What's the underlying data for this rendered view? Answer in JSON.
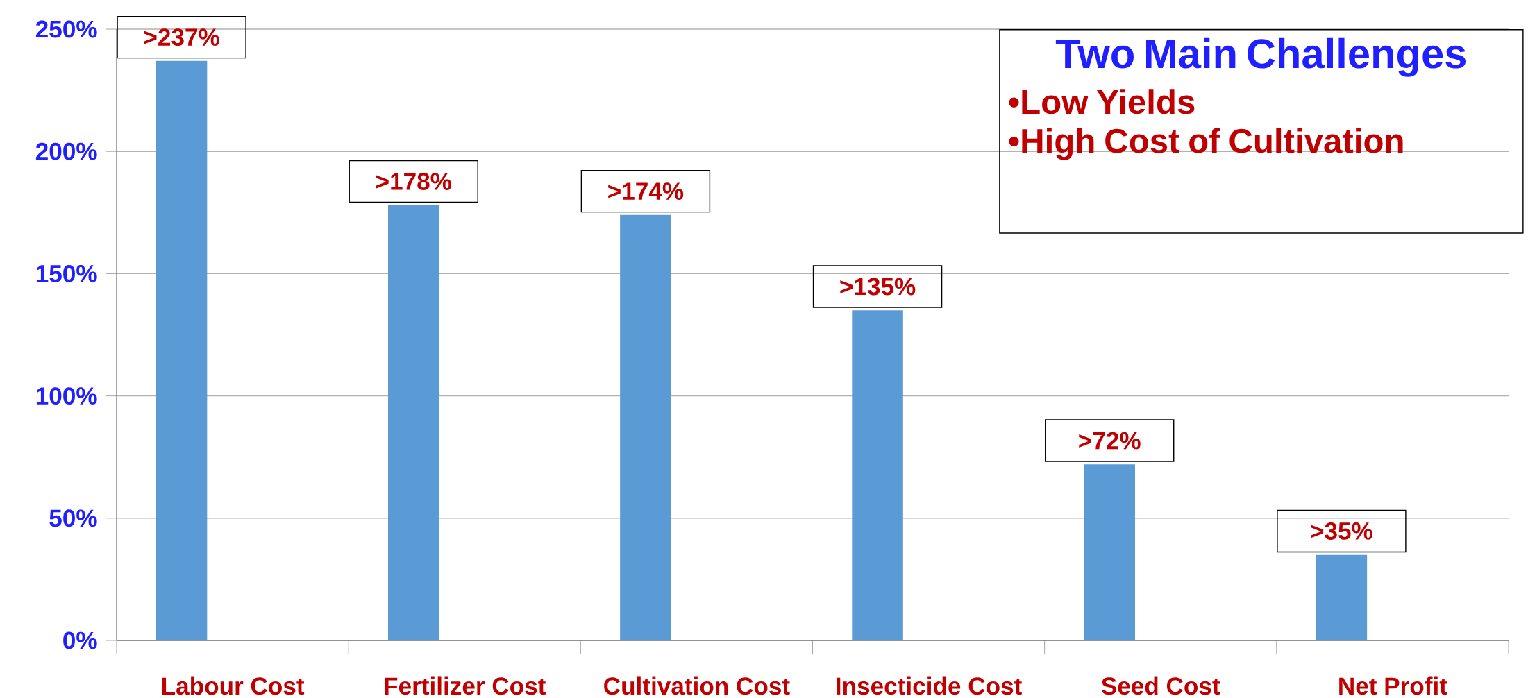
{
  "chart_data": {
    "type": "bar",
    "categories": [
      "Labour Cost",
      "Fertilizer Cost",
      "Cultivation Cost",
      "Insecticide Cost",
      "Seed Cost",
      "Net Profit"
    ],
    "values": [
      237,
      178,
      174,
      135,
      72,
      35
    ],
    "value_labels": [
      ">237%",
      ">178%",
      ">174%",
      ">135%",
      ">72%",
      ">35%"
    ],
    "color": "#5b9bd5",
    "ylim": [
      0,
      250
    ],
    "yticks": [
      {
        "value": 0,
        "label": "0%"
      },
      {
        "value": 50,
        "label": "50%"
      },
      {
        "value": 100,
        "label": "100%"
      },
      {
        "value": 150,
        "label": "150%"
      },
      {
        "value": 200,
        "label": "200%"
      },
      {
        "value": 250,
        "label": "250%"
      }
    ],
    "grid": "y",
    "annotations": [
      "Two Main Challenges",
      "•Low Yields",
      "•High Cost of Cultivation"
    ]
  }
}
